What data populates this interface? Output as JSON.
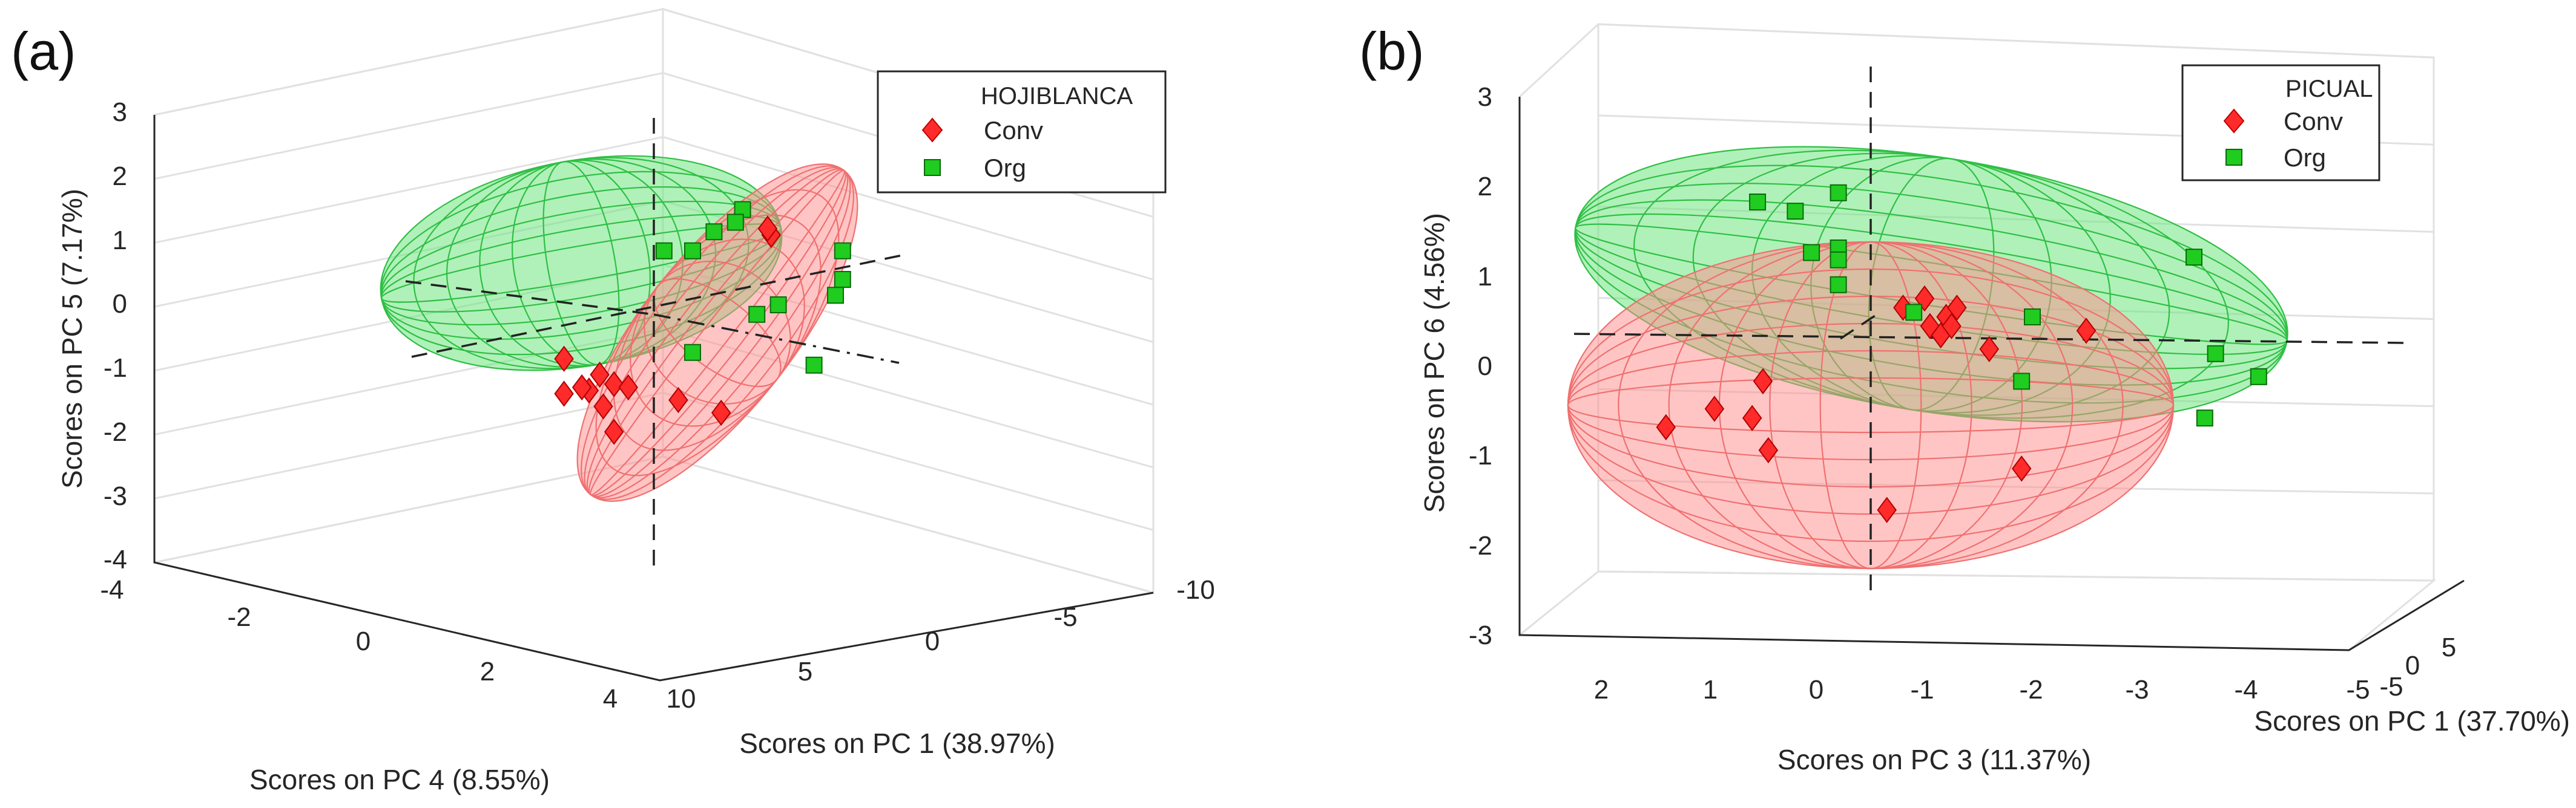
{
  "colors": {
    "conv": "#ff2a2a",
    "org": "#1fcc1f",
    "conv_ellipse": "#ff8c8c",
    "org_ellipse": "#6fe57f"
  },
  "panels": [
    {
      "label": "(a)",
      "legend": {
        "title": "HOJIBLANCA",
        "entries": [
          "Conv",
          "Org"
        ]
      },
      "axes": {
        "z_label": "Scores on PC 5 (7.17%)",
        "x_label": "Scores on PC 4 (8.55%)",
        "y_label": "Scores on PC 1 (38.97%)",
        "z_ticks": [
          "3",
          "2",
          "1",
          "0",
          "-1",
          "-2",
          "-3",
          "-4"
        ],
        "x_ticks": [
          "-4",
          "-2",
          "0",
          "2",
          "4"
        ],
        "y_ticks": [
          "10",
          "5",
          "0",
          "-5",
          "-10"
        ]
      }
    },
    {
      "label": "(b)",
      "legend": {
        "title": "PICUAL",
        "entries": [
          "Conv",
          "Org"
        ]
      },
      "axes": {
        "z_label": "Scores on PC 6 (4.56%)",
        "x_label": "Scores on PC 3 (11.37%)",
        "y_label": "Scores on PC 1 (37.70%)",
        "z_ticks": [
          "3",
          "2",
          "1",
          "0",
          "-1",
          "-2",
          "-3"
        ],
        "x_ticks": [
          "2",
          "1",
          "0",
          "-1",
          "-2",
          "-3",
          "-4",
          "-5"
        ],
        "y_ticks": [
          "5",
          "0",
          "-5"
        ]
      }
    }
  ],
  "chart_data": [
    {
      "type": "scatter",
      "title": "HOJIBLANCA",
      "xlabel": "Scores on PC 4 (8.55%)",
      "ylabel": "Scores on PC 1 (38.97%)",
      "zlabel": "Scores on PC 5 (7.17%)",
      "zlim": [
        -4,
        3
      ],
      "legend_position": "top-right",
      "series": [
        {
          "name": "Conv",
          "marker": "diamond",
          "points_projected": [
            [
              -1.6,
              1.3
            ],
            [
              -1.55,
              1.4
            ],
            [
              1.3,
              -0.65
            ],
            [
              1.3,
              -1.2
            ],
            [
              0.8,
              -0.9
            ],
            [
              0.95,
              -1.15
            ],
            [
              1.05,
              -1.1
            ],
            [
              0.75,
              -1.4
            ],
            [
              0.6,
              -1.05
            ],
            [
              0.4,
              -1.1
            ],
            [
              -0.3,
              -1.3
            ],
            [
              -0.9,
              -1.5
            ],
            [
              0.6,
              -1.8
            ]
          ]
        },
        {
          "name": "Org",
          "marker": "square",
          "points_projected": [
            [
              -1.2,
              1.7
            ],
            [
              -1.1,
              1.5
            ],
            [
              -0.8,
              1.35
            ],
            [
              -0.5,
              1.05
            ],
            [
              -0.1,
              1.05
            ],
            [
              -2.6,
              1.05
            ],
            [
              -2.6,
              0.6
            ],
            [
              -2.5,
              0.35
            ],
            [
              -1.7,
              0.2
            ],
            [
              -1.4,
              0.05
            ],
            [
              -0.5,
              -0.55
            ],
            [
              -2.2,
              -0.75
            ]
          ]
        }
      ]
    },
    {
      "type": "scatter",
      "title": "PICUAL",
      "xlabel": "Scores on PC 3 (11.37%)",
      "ylabel": "Scores on PC 1 (37.70%)",
      "zlabel": "Scores on PC 6 (4.56%)",
      "zlim": [
        -3,
        3
      ],
      "legend_position": "top-right",
      "series": [
        {
          "name": "Conv",
          "marker": "diamond",
          "points_projected": [
            [
              -0.5,
              0.7
            ],
            [
              -0.55,
              0.4
            ],
            [
              -0.65,
              0.3
            ],
            [
              -0.7,
              0.5
            ],
            [
              -0.75,
              0.4
            ],
            [
              -0.8,
              0.6
            ],
            [
              -0.3,
              0.6
            ],
            [
              -1.1,
              0.15
            ],
            [
              -2.0,
              0.35
            ],
            [
              1.0,
              -0.2
            ],
            [
              1.45,
              -0.5
            ],
            [
              1.1,
              -0.6
            ],
            [
              1.9,
              -0.7
            ],
            [
              0.95,
              -0.95
            ],
            [
              -0.15,
              -1.6
            ],
            [
              -1.4,
              -1.15
            ]
          ]
        },
        {
          "name": "Org",
          "marker": "square",
          "points_projected": [
            [
              0.3,
              1.85
            ],
            [
              0.7,
              1.65
            ],
            [
              1.05,
              1.75
            ],
            [
              0.3,
              1.25
            ],
            [
              0.3,
              1.12
            ],
            [
              0.55,
              1.2
            ],
            [
              0.3,
              0.85
            ],
            [
              -0.4,
              0.55
            ],
            [
              -1.5,
              0.5
            ],
            [
              -3.0,
              1.15
            ],
            [
              -3.2,
              0.1
            ],
            [
              -1.4,
              -0.2
            ],
            [
              -3.6,
              -0.15
            ],
            [
              -3.1,
              -0.6
            ]
          ]
        }
      ]
    }
  ]
}
